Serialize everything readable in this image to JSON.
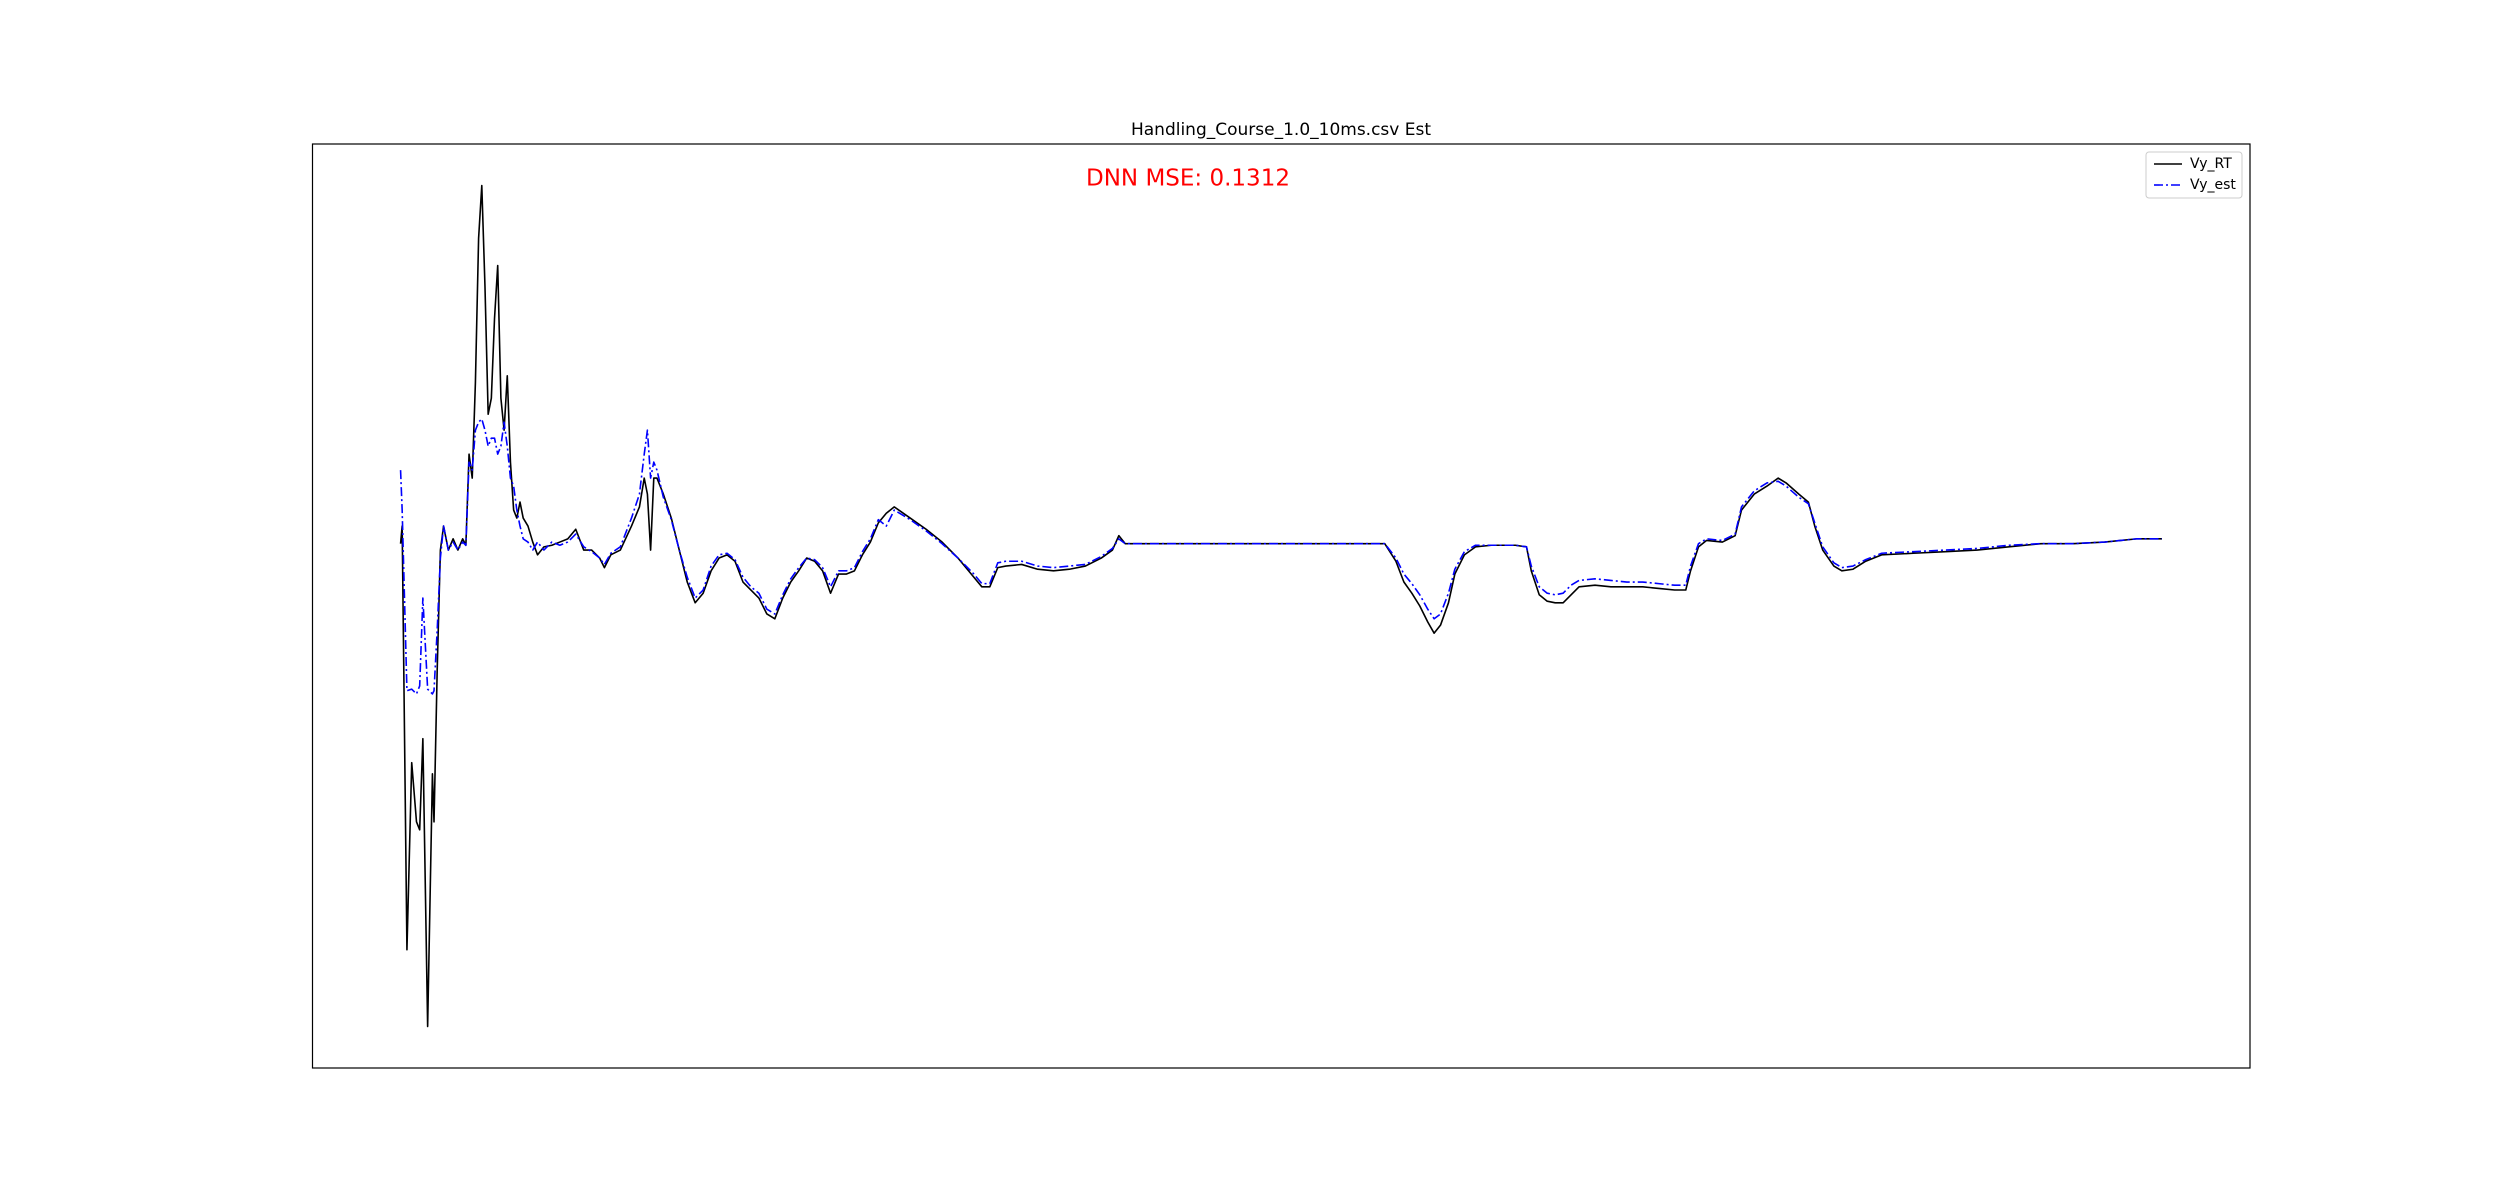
{
  "chart_data": {
    "type": "line",
    "title": "Handling_Course_1.0_10ms.csv Est",
    "annotation": "DNN MSE: 0.1312",
    "annotation_color": "#ff0000",
    "legend": "upper right",
    "grid": false,
    "xlim": [
      -5.53,
      116.13
    ],
    "ylim": [
      -3.28,
      2.5
    ],
    "x": [
      0,
      0.1,
      0.4,
      0.7,
      1.0,
      1.2,
      1.4,
      1.7,
      2.0,
      2.1,
      2.3,
      2.5,
      2.7,
      3.0,
      3.3,
      3.6,
      3.9,
      4.1,
      4.3,
      4.5,
      4.7,
      4.9,
      5.1,
      5.3,
      5.5,
      5.7,
      5.9,
      6.1,
      6.3,
      6.5,
      6.7,
      6.9,
      7.1,
      7.3,
      7.5,
      7.7,
      8.0,
      8.3,
      8.6,
      9.0,
      9.5,
      10.0,
      10.5,
      11.0,
      11.5,
      12.0,
      12.5,
      12.8,
      13.2,
      13.8,
      14.5,
      15.0,
      15.3,
      15.5,
      15.7,
      15.9,
      16.1,
      16.5,
      17.0,
      17.5,
      18.0,
      18.5,
      19.0,
      19.5,
      20.0,
      20.5,
      21.0,
      21.5,
      22.0,
      22.5,
      23.0,
      23.5,
      24.0,
      24.5,
      25.0,
      25.5,
      26.0,
      26.5,
      27.0,
      27.5,
      28.0,
      28.5,
      29.0,
      29.5,
      30.0,
      30.5,
      31.0,
      32.0,
      33.0,
      34.0,
      35.0,
      36.0,
      36.5,
      37.0,
      37.5,
      38.0,
      39.0,
      40.0,
      41.0,
      42.0,
      43.0,
      44.0,
      44.7,
      45.1,
      45.5,
      50.0,
      55.0,
      60.0,
      61.8,
      62.5,
      63.0,
      63.5,
      64.0,
      64.5,
      64.9,
      65.3,
      65.8,
      66.2,
      66.8,
      67.5,
      68.5,
      70.0,
      70.7,
      71.0,
      71.5,
      72.0,
      72.5,
      73.0,
      73.5,
      74.0,
      75.0,
      76.0,
      77.0,
      78.0,
      79.0,
      80.0,
      80.7,
      81.0,
      81.5,
      82.0,
      83.0,
      83.8,
      84.2,
      85.0,
      85.8,
      86.5,
      87.0,
      87.8,
      88.4,
      88.8,
      89.3,
      90.0,
      90.5,
      91.2,
      92.0,
      93.0,
      95.0,
      97.0,
      99.0,
      101.0,
      103.0,
      105.0,
      107.0,
      109.0,
      110.6
    ],
    "series": [
      {
        "name": "Vy_RT",
        "color": "#000000",
        "style": "solid",
        "values": [
          0,
          0.11,
          -2.54,
          -1.37,
          -1.74,
          -1.79,
          -1.22,
          -3.02,
          -1.44,
          -1.74,
          -0.79,
          -0.04,
          0.11,
          -0.04,
          0.03,
          -0.04,
          0.03,
          -0.01,
          0.56,
          0.41,
          1.01,
          1.91,
          2.24,
          1.61,
          0.81,
          0.91,
          1.41,
          1.74,
          0.91,
          0.71,
          1.05,
          0.51,
          0.21,
          0.16,
          0.26,
          0.16,
          0.11,
          0.01,
          -0.07,
          -0.02,
          -0.01,
          0.01,
          0.03,
          0.09,
          -0.04,
          -0.04,
          -0.09,
          -0.15,
          -0.07,
          -0.04,
          0.11,
          0.23,
          0.41,
          0.31,
          -0.04,
          0.41,
          0.41,
          0.31,
          0.16,
          -0.04,
          -0.24,
          -0.37,
          -0.31,
          -0.17,
          -0.09,
          -0.07,
          -0.11,
          -0.24,
          -0.29,
          -0.34,
          -0.44,
          -0.47,
          -0.34,
          -0.24,
          -0.17,
          -0.09,
          -0.11,
          -0.17,
          -0.31,
          -0.19,
          -0.19,
          -0.17,
          -0.07,
          0.01,
          0.13,
          0.19,
          0.23,
          0.16,
          0.09,
          0.01,
          -0.09,
          -0.21,
          -0.27,
          -0.27,
          -0.15,
          -0.14,
          -0.13,
          -0.16,
          -0.17,
          -0.16,
          -0.14,
          -0.09,
          -0.04,
          0.05,
          0,
          0,
          0,
          0,
          0,
          -0.11,
          -0.24,
          -0.31,
          -0.39,
          -0.49,
          -0.56,
          -0.51,
          -0.37,
          -0.19,
          -0.07,
          -0.02,
          -0.01,
          -0.01,
          -0.02,
          -0.17,
          -0.32,
          -0.36,
          -0.37,
          -0.37,
          -0.32,
          -0.27,
          -0.26,
          -0.27,
          -0.27,
          -0.27,
          -0.28,
          -0.29,
          -0.29,
          -0.17,
          -0.02,
          0.02,
          0.01,
          0.05,
          0.21,
          0.31,
          0.36,
          0.41,
          0.38,
          0.31,
          0.26,
          0.11,
          -0.04,
          -0.14,
          -0.17,
          -0.16,
          -0.11,
          -0.07,
          -0.06,
          -0.05,
          -0.04,
          -0.02,
          0,
          0,
          0.01,
          0.03,
          0.03
        ]
      },
      {
        "name": "Vy_est",
        "color": "#0000ff",
        "style": "dashdot",
        "values": [
          0.46,
          0.21,
          -0.92,
          -0.91,
          -0.94,
          -0.89,
          -0.34,
          -0.91,
          -0.94,
          -0.92,
          -0.54,
          -0.09,
          0.11,
          -0.04,
          0.01,
          -0.04,
          0.01,
          -0.01,
          0.51,
          0.46,
          0.71,
          0.76,
          0.78,
          0.71,
          0.61,
          0.66,
          0.66,
          0.56,
          0.61,
          0.76,
          0.61,
          0.41,
          0.36,
          0.21,
          0.11,
          0.03,
          0.01,
          -0.04,
          0.01,
          -0.04,
          0.01,
          -0.01,
          0.01,
          0.06,
          -0.02,
          -0.05,
          -0.09,
          -0.13,
          -0.06,
          -0.02,
          0.16,
          0.31,
          0.56,
          0.71,
          0.41,
          0.51,
          0.46,
          0.29,
          0.15,
          -0.04,
          -0.21,
          -0.34,
          -0.29,
          -0.14,
          -0.07,
          -0.06,
          -0.1,
          -0.21,
          -0.27,
          -0.31,
          -0.41,
          -0.44,
          -0.32,
          -0.22,
          -0.15,
          -0.09,
          -0.1,
          -0.15,
          -0.27,
          -0.17,
          -0.17,
          -0.15,
          -0.05,
          0.03,
          0.15,
          0.11,
          0.21,
          0.15,
          0.08,
          0,
          -0.09,
          -0.19,
          -0.25,
          -0.25,
          -0.12,
          -0.11,
          -0.11,
          -0.14,
          -0.15,
          -0.14,
          -0.13,
          -0.08,
          -0.03,
          0.03,
          0,
          0,
          0,
          0,
          0,
          -0.09,
          -0.19,
          -0.25,
          -0.32,
          -0.41,
          -0.47,
          -0.44,
          -0.31,
          -0.16,
          -0.05,
          -0.01,
          -0.01,
          -0.01,
          -0.02,
          -0.14,
          -0.27,
          -0.31,
          -0.32,
          -0.31,
          -0.26,
          -0.23,
          -0.22,
          -0.23,
          -0.24,
          -0.24,
          -0.25,
          -0.26,
          -0.26,
          -0.14,
          0,
          0.03,
          0.02,
          0.06,
          0.23,
          0.33,
          0.38,
          0.39,
          0.36,
          0.29,
          0.25,
          0.13,
          -0.02,
          -0.12,
          -0.15,
          -0.14,
          -0.1,
          -0.06,
          -0.05,
          -0.04,
          -0.03,
          -0.01,
          0,
          0,
          0.01,
          0.03,
          0.03
        ]
      }
    ]
  }
}
